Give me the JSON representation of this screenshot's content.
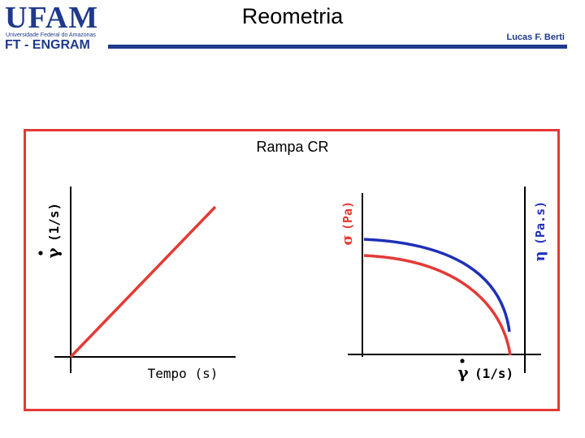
{
  "header": {
    "logo": "UFAM",
    "logo_subtitle": "Universidade Federal do Amazonas",
    "department": "FT - ENGRAM",
    "title": "Reometria",
    "author": "Lucas F. Berti"
  },
  "diagram": {
    "heading": "Rampa CR",
    "left_panel": {
      "y_label_symbol": "γ",
      "y_label_unit": "(1/s)",
      "x_label": "Tempo (s)"
    },
    "right_panel": {
      "y_left_symbol": "σ",
      "y_left_unit": "(Pa)",
      "y_right_symbol": "η",
      "y_right_unit": "(Pa.s)",
      "x_label_symbol": "γ",
      "x_label_unit": "(1/s)"
    },
    "colors": {
      "frame": "#e53935",
      "axes": "#000000",
      "ramp_line": "#e53935",
      "stress_curve": "#e53935",
      "viscosity_curve": "#1e2fb8",
      "brand": "#1f3a8a"
    }
  }
}
